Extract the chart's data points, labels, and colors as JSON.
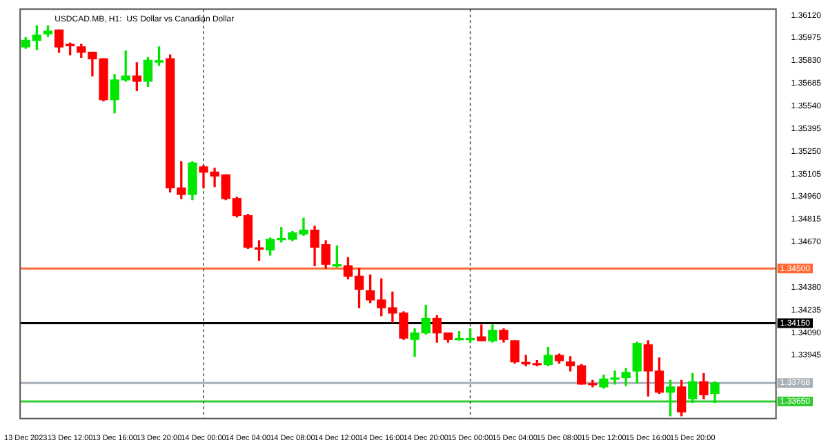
{
  "chart_data": {
    "type": "candlestick",
    "title": "USDCAD.MB, H1:  US Dollar vs Canadian Dollar",
    "categories": [
      "13 Dec 2023",
      null,
      null,
      null,
      "13 Dec 12:00",
      null,
      null,
      null,
      "13 Dec 16:00",
      null,
      null,
      null,
      "13 Dec 20:00",
      null,
      null,
      null,
      "14 Dec 00:00",
      null,
      null,
      null,
      "14 Dec 04:00",
      null,
      null,
      null,
      "14 Dec 08:00",
      null,
      null,
      null,
      "14 Dec 12:00",
      null,
      null,
      null,
      "14 Dec 16:00",
      null,
      null,
      null,
      "14 Dec 20:00",
      null,
      null,
      null,
      "15 Dec 00:00",
      null,
      null,
      null,
      "15 Dec 04:00",
      null,
      null,
      null,
      "15 Dec 08:00",
      null,
      null,
      null,
      "15 Dec 12:00",
      null,
      null,
      null,
      "15 Dec 16:00",
      null,
      null,
      null,
      "15 Dec 20:00",
      null,
      null,
      null,
      null,
      null,
      null,
      null
    ],
    "ohlc": [
      [
        1.35918,
        1.35977,
        1.35909,
        1.3596
      ],
      [
        1.3596,
        1.36053,
        1.35901,
        1.35994
      ],
      [
        1.36002,
        1.36053,
        1.35985,
        1.36019
      ],
      [
        1.36027,
        1.36027,
        1.35884,
        1.35918
      ],
      [
        1.35935,
        1.35943,
        1.35867,
        1.35926
      ],
      [
        1.35918,
        1.35935,
        1.3585,
        1.35884
      ],
      [
        1.35884,
        1.35884,
        1.35732,
        1.35842
      ],
      [
        1.35842,
        1.35842,
        1.35572,
        1.3558
      ],
      [
        1.3558,
        1.35741,
        1.35496,
        1.35707
      ],
      [
        1.35707,
        1.35892,
        1.35698,
        1.35732
      ],
      [
        1.35732,
        1.35817,
        1.35639,
        1.35698
      ],
      [
        1.35698,
        1.3585,
        1.35665,
        1.35833
      ],
      [
        1.35821,
        1.35918,
        1.358,
        1.35825
      ],
      [
        1.35842,
        1.35867,
        1.3499,
        1.35016
      ],
      [
        1.35016,
        1.35184,
        1.34948,
        1.34974
      ],
      [
        1.34974,
        1.35184,
        1.3494,
        1.35176
      ],
      [
        1.35151,
        1.35159,
        1.35016,
        1.35117
      ],
      [
        1.35117,
        1.35142,
        1.35024,
        1.35092
      ],
      [
        1.351,
        1.351,
        1.3494,
        1.34948
      ],
      [
        1.34948,
        1.34957,
        1.3483,
        1.34839
      ],
      [
        1.34839,
        1.34847,
        1.34628,
        1.34636
      ],
      [
        1.34628,
        1.34678,
        1.34552,
        1.34624
      ],
      [
        1.34619,
        1.34695,
        1.34586,
        1.34687
      ],
      [
        1.34684,
        1.34763,
        1.3467,
        1.34689
      ],
      [
        1.34687,
        1.34737,
        1.34678,
        1.34729
      ],
      [
        1.34721,
        1.34822,
        1.34712,
        1.34746
      ],
      [
        1.34746,
        1.34771,
        1.34518,
        1.34636
      ],
      [
        1.34653,
        1.34678,
        1.34501,
        1.34527
      ],
      [
        1.34516,
        1.34645,
        1.3451,
        1.34521
      ],
      [
        1.34518,
        1.34569,
        1.34434,
        1.34451
      ],
      [
        1.34451,
        1.34501,
        1.34249,
        1.34367
      ],
      [
        1.34358,
        1.34459,
        1.34282,
        1.34299
      ],
      [
        1.34299,
        1.34434,
        1.34198,
        1.34249
      ],
      [
        1.34249,
        1.3435,
        1.34156,
        1.34215
      ],
      [
        1.34215,
        1.34223,
        1.34046,
        1.34055
      ],
      [
        1.34046,
        1.34114,
        1.33937,
        1.34088
      ],
      [
        1.34088,
        1.34265,
        1.3408,
        1.34181
      ],
      [
        1.34181,
        1.34198,
        1.34029,
        1.34088
      ],
      [
        1.34088,
        1.34088,
        1.34029,
        1.34046
      ],
      [
        1.34044,
        1.34097,
        1.34042,
        1.34049
      ],
      [
        1.34044,
        1.34114,
        1.34029,
        1.34049
      ],
      [
        1.34063,
        1.34139,
        1.34038,
        1.34038
      ],
      [
        1.34038,
        1.34139,
        1.34029,
        1.34105
      ],
      [
        1.34105,
        1.34114,
        1.34029,
        1.34046
      ],
      [
        1.34038,
        1.34038,
        1.33894,
        1.33903
      ],
      [
        1.33899,
        1.33945,
        1.33878,
        1.3389
      ],
      [
        1.33888,
        1.33911,
        1.33878,
        1.33884
      ],
      [
        1.33886,
        1.33996,
        1.33878,
        1.33945
      ],
      [
        1.33945,
        1.33953,
        1.33894,
        1.33911
      ],
      [
        1.33903,
        1.33937,
        1.33844,
        1.33878
      ],
      [
        1.33878,
        1.33886,
        1.3376,
        1.3376
      ],
      [
        1.33764,
        1.33785,
        1.33743,
        1.33756
      ],
      [
        1.33743,
        1.33819,
        1.33734,
        1.33793
      ],
      [
        1.33791,
        1.33844,
        1.3376,
        1.33796
      ],
      [
        1.33802,
        1.33861,
        1.33751,
        1.33835
      ],
      [
        1.33844,
        1.34029,
        1.33768,
        1.34021
      ],
      [
        1.34012,
        1.34038,
        1.33684,
        1.33844
      ],
      [
        1.33844,
        1.33928,
        1.33701,
        1.33709
      ],
      [
        1.33709,
        1.33785,
        1.33557,
        1.33743
      ],
      [
        1.33743,
        1.33785,
        1.33557,
        1.33583
      ],
      [
        1.33667,
        1.33827,
        1.33642,
        1.33776
      ],
      [
        1.33776,
        1.33827,
        1.33667,
        1.33692
      ],
      [
        1.33701,
        1.33776,
        1.33642,
        1.33768
      ],
      null,
      null,
      null,
      null,
      null
    ],
    "colors": [
      "#00e600",
      "#00e600",
      "#00e600",
      "#ff0000",
      "#ff0000",
      "#ff0000",
      "#ff0000",
      "#ff0000",
      "#00e600",
      "#00e600",
      "#ff0000",
      "#00e600",
      "#00e600",
      "#ff0000",
      "#ff0000",
      "#00e600",
      "#ff0000",
      "#ff0000",
      "#ff0000",
      "#ff0000",
      "#ff0000",
      "#ff0000",
      "#00e600",
      "#00e600",
      "#00e600",
      "#00e600",
      "#ff0000",
      "#ff0000",
      "#00e600",
      "#ff0000",
      "#ff0000",
      "#ff0000",
      "#ff0000",
      "#ff0000",
      "#ff0000",
      "#00e600",
      "#00e600",
      "#ff0000",
      "#ff0000",
      "#00e600",
      "#00e600",
      "#ff0000",
      "#00e600",
      "#ff0000",
      "#ff0000",
      "#ff0000",
      "#ff0000",
      "#00e600",
      "#ff0000",
      "#ff0000",
      "#ff0000",
      "#ff0000",
      "#00e600",
      "#00e600",
      "#00e600",
      "#00e600",
      "#ff0000",
      "#ff0000",
      "#00e600",
      "#ff0000",
      "#00e600",
      "#ff0000",
      "#00e600",
      null,
      null,
      null,
      null,
      null
    ],
    "ylim": [
      1.3354,
      1.3616
    ],
    "yticks": [
      {
        "value": 1.3612,
        "label": "1.36120"
      },
      {
        "value": 1.35975,
        "label": "1.35975"
      },
      {
        "value": 1.3583,
        "label": "1.35830"
      },
      {
        "value": 1.35685,
        "label": "1.35685"
      },
      {
        "value": 1.3554,
        "label": "1.35540"
      },
      {
        "value": 1.35395,
        "label": "1.35395"
      },
      {
        "value": 1.3525,
        "label": "1.35250"
      },
      {
        "value": 1.35105,
        "label": "1.35105"
      },
      {
        "value": 1.3496,
        "label": "1.34960"
      },
      {
        "value": 1.34815,
        "label": "1.34815"
      },
      {
        "value": 1.3467,
        "label": "1.34670"
      },
      {
        "value": 1.3438,
        "label": "1.34380"
      },
      {
        "value": 1.34235,
        "label": "1.34235"
      },
      {
        "value": 1.3409,
        "label": "1.34090"
      },
      {
        "value": 1.33945,
        "label": "1.33945"
      }
    ],
    "ref_lines": [
      {
        "axis": "y",
        "value": 1.345,
        "label": "1.34500",
        "color": "#ff6a33"
      },
      {
        "axis": "y",
        "value": 1.3415,
        "label": "1.34150",
        "color": "#000000"
      },
      {
        "axis": "y",
        "value": 1.33768,
        "label": "1.33768",
        "color": "#a8b0b8"
      },
      {
        "axis": "y",
        "value": 1.3365,
        "label": "1.33650",
        "color": "#33cc33"
      },
      {
        "axis": "x",
        "value": "14 Dec 00:00",
        "color": "#555555",
        "line_style": "dashed"
      },
      {
        "axis": "x",
        "value": "15 Dec 00:00",
        "color": "#555555",
        "line_style": "dashed"
      }
    ]
  }
}
